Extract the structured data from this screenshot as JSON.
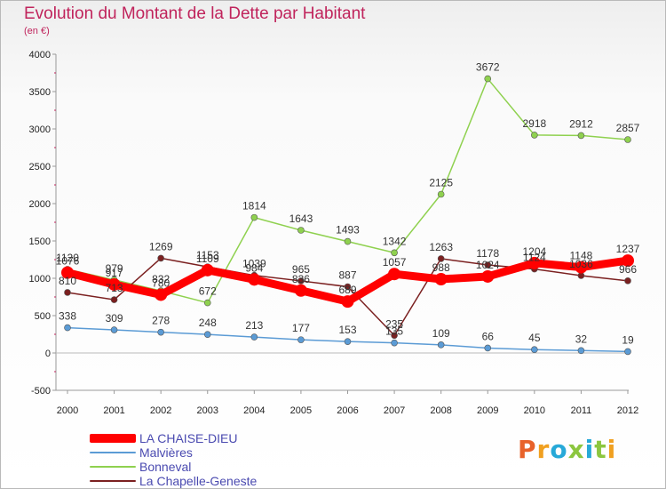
{
  "header": {
    "title": "Evolution du Montant de la Dette par Habitant",
    "unit": "(en €)"
  },
  "logo": {
    "letters": [
      "P",
      "r",
      "o",
      "x",
      "i",
      "t",
      "i"
    ],
    "colors": [
      "#e8622a",
      "#f0a020",
      "#27a9d8",
      "#8cc63f",
      "#27a9d8",
      "#8cc63f",
      "#f0a020"
    ]
  },
  "chart_data": {
    "type": "line",
    "title": "Evolution du Montant de la Dette par Habitant",
    "ylabel": "(en €)",
    "xlabel": "",
    "x": [
      "2000",
      "2001",
      "2002",
      "2003",
      "2004",
      "2005",
      "2006",
      "2007",
      "2008",
      "2009",
      "2010",
      "2011",
      "2012"
    ],
    "ylim": [
      -500,
      4000
    ],
    "yticks": [
      "-500",
      "0",
      "500",
      "1000",
      "1500",
      "2000",
      "2500",
      "3000",
      "3500",
      "4000"
    ],
    "grid": false,
    "legend_position": "bottom-left",
    "series": [
      {
        "name": "LA CHAISE-DIEU",
        "color": "#ff0000",
        "style": "thick",
        "values": [
          1076,
          917,
          780,
          1109,
          984,
          836,
          689,
          1057,
          988,
          1024,
          1204,
          1148,
          1237
        ],
        "labels": [
          "1076",
          "917",
          "780",
          "1109",
          "984",
          "836",
          "689",
          "1057",
          "988",
          "1024",
          "1204",
          "1148",
          "1237"
        ]
      },
      {
        "name": "Malvières",
        "color": "#5b9bd5",
        "style": "thin",
        "values": [
          338,
          309,
          278,
          248,
          213,
          177,
          153,
          135,
          109,
          66,
          45,
          32,
          19
        ],
        "labels": [
          "338",
          "309",
          "278",
          "248",
          "213",
          "177",
          "153",
          "135",
          "109",
          "66",
          "45",
          "32",
          "19"
        ]
      },
      {
        "name": "Bonneval",
        "color": "#8fd14f",
        "style": "thin",
        "values": [
          1120,
          979,
          832,
          672,
          1814,
          1643,
          1493,
          1342,
          2125,
          3672,
          2918,
          2912,
          2857
        ],
        "labels": [
          "1120",
          "979",
          "832",
          "672",
          "1814",
          "1643",
          "1493",
          "1342",
          "2125",
          "3672",
          "2918",
          "2912",
          "2857"
        ]
      },
      {
        "name": "La Chapelle-Geneste",
        "color": "#7b2020",
        "style": "thin",
        "values": [
          810,
          713,
          1269,
          1153,
          1039,
          965,
          887,
          235,
          1263,
          1178,
          1124,
          1036,
          966
        ],
        "labels": [
          "810",
          "713",
          "1269",
          "1153",
          "1039",
          "965",
          "887",
          "235",
          "1263",
          "1178",
          "1124",
          "1036",
          "966"
        ]
      }
    ]
  }
}
